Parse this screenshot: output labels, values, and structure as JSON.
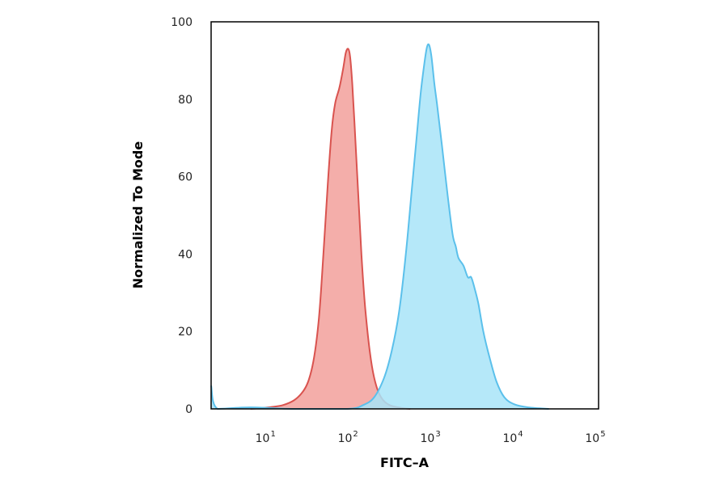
{
  "chart_data": {
    "type": "area",
    "xlabel": "FITC–A",
    "ylabel": "Normalized To Mode",
    "xscale": "log",
    "xlim": [
      2,
      100000
    ],
    "ylim": [
      0,
      100
    ],
    "yticks": [
      0,
      20,
      40,
      60,
      80,
      100
    ],
    "xticks": [
      {
        "value": 10,
        "base": "10",
        "exp": "1"
      },
      {
        "value": 100,
        "base": "10",
        "exp": "2"
      },
      {
        "value": 1000,
        "base": "10",
        "exp": "3"
      },
      {
        "value": 10000,
        "base": "10",
        "exp": "4"
      },
      {
        "value": 100000,
        "base": "10",
        "exp": "5"
      }
    ],
    "grid": false,
    "series": [
      {
        "color": "#d9534f",
        "fill": "#f2a09b",
        "points": [
          [
            6,
            0
          ],
          [
            15,
            1
          ],
          [
            25,
            4
          ],
          [
            33,
            10
          ],
          [
            40,
            22
          ],
          [
            46,
            40
          ],
          [
            52,
            58
          ],
          [
            58,
            72
          ],
          [
            64,
            79
          ],
          [
            72,
            83
          ],
          [
            80,
            88
          ],
          [
            86,
            92
          ],
          [
            92,
            93
          ],
          [
            97,
            91
          ],
          [
            103,
            84
          ],
          [
            112,
            70
          ],
          [
            122,
            55
          ],
          [
            133,
            40
          ],
          [
            148,
            26
          ],
          [
            170,
            14
          ],
          [
            195,
            7
          ],
          [
            230,
            3
          ],
          [
            290,
            1
          ],
          [
            400,
            0.3
          ],
          [
            520,
            0
          ]
        ]
      },
      {
        "color": "#5bc0eb",
        "fill": "#a8e4f8",
        "points": [
          [
            2,
            6
          ],
          [
            2.4,
            0
          ],
          [
            6,
            0.4
          ],
          [
            20,
            0
          ],
          [
            90,
            0
          ],
          [
            140,
            1
          ],
          [
            190,
            3
          ],
          [
            250,
            8
          ],
          [
            310,
            15
          ],
          [
            380,
            25
          ],
          [
            460,
            40
          ],
          [
            540,
            56
          ],
          [
            620,
            70
          ],
          [
            700,
            82
          ],
          [
            780,
            90
          ],
          [
            830,
            93.5
          ],
          [
            880,
            94
          ],
          [
            940,
            91
          ],
          [
            1020,
            84
          ],
          [
            1110,
            78
          ],
          [
            1260,
            68
          ],
          [
            1480,
            55
          ],
          [
            1700,
            45
          ],
          [
            1850,
            42
          ],
          [
            2000,
            39
          ],
          [
            2300,
            37
          ],
          [
            2600,
            34
          ],
          [
            2850,
            34
          ],
          [
            3150,
            31
          ],
          [
            3500,
            27
          ],
          [
            4000,
            20
          ],
          [
            4800,
            13
          ],
          [
            5800,
            7
          ],
          [
            7200,
            3
          ],
          [
            9500,
            1.2
          ],
          [
            14000,
            0.4
          ],
          [
            25000,
            0
          ]
        ]
      }
    ]
  }
}
